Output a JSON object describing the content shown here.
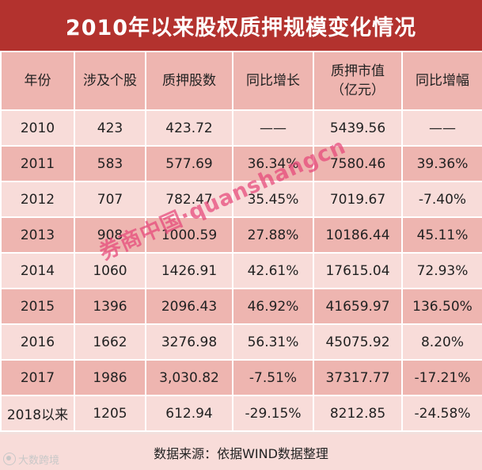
{
  "title": "2010年以来股权质押规模变化情况",
  "table": {
    "headers": [
      [
        "年份"
      ],
      [
        "涉及个股"
      ],
      [
        "质押股数"
      ],
      [
        "同比增长"
      ],
      [
        "质押市值",
        "（亿元）"
      ],
      [
        "同比增幅"
      ]
    ],
    "rows": [
      [
        "2010",
        "423",
        "423.72",
        "——",
        "5439.56",
        "——"
      ],
      [
        "2011",
        "583",
        "577.69",
        "36.34%",
        "7580.46",
        "39.36%"
      ],
      [
        "2012",
        "707",
        "782.47",
        "35.45%",
        "7019.67",
        "-7.40%"
      ],
      [
        "2013",
        "908",
        "1000.59",
        "27.88%",
        "10186.44",
        "45.11%"
      ],
      [
        "2014",
        "1060",
        "1426.91",
        "42.61%",
        "17615.04",
        "72.93%"
      ],
      [
        "2015",
        "1396",
        "2096.43",
        "46.92%",
        "41659.97",
        "136.50%"
      ],
      [
        "2016",
        "1662",
        "3276.98",
        "56.31%",
        "45075.92",
        "8.20%"
      ],
      [
        "2017",
        "1986",
        "3,030.82",
        "-7.51%",
        "37317.77",
        "-17.21%"
      ],
      [
        "2018以来",
        "1205",
        "612.94",
        "-29.15%",
        "8212.85",
        "-24.58%"
      ]
    ]
  },
  "source": "数据来源：依据WIND数据整理",
  "watermark": "券商中国·quanshangcn",
  "logo_text": "大数跨境",
  "colors": {
    "title_bg": "#b3322e",
    "row_dark": "#eeb5b0",
    "row_light": "#f8dcd9",
    "watermark": "#e64678"
  }
}
